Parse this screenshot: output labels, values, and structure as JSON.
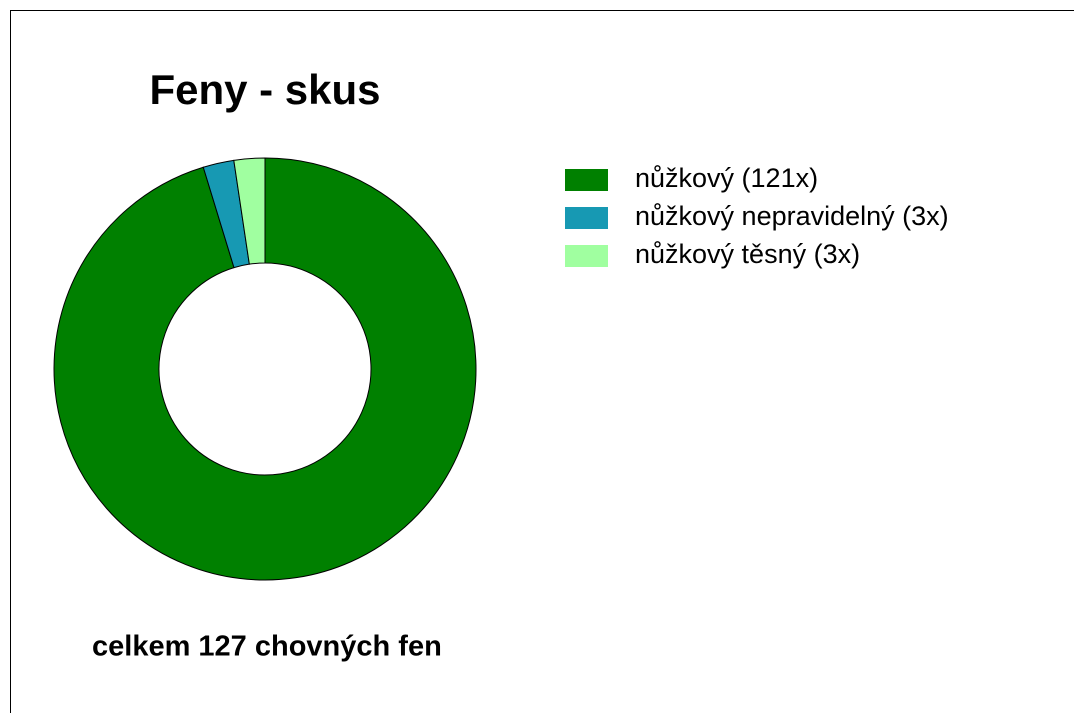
{
  "chart_data": {
    "type": "pie",
    "title": "Feny - skus",
    "categories": [
      "nůžkový (121x)",
      "nůžkový nepravidelný (3x)",
      "nůžkový těsný (3x)"
    ],
    "values": [
      121,
      3,
      3
    ],
    "colors": [
      "#008000",
      "#1799b3",
      "#a0ffa0"
    ],
    "annotation": "celkem 127 chovných fen"
  }
}
